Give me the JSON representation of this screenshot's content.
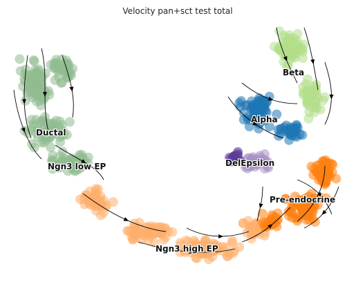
{
  "chart_data": {
    "type": "scatter",
    "title": "Velocity pan+sct test total",
    "xlabel": "",
    "ylabel": "",
    "axes_visible": false,
    "grid": false,
    "legend": "on-data",
    "overlay": "velocity streamlines (black arrows)",
    "clusters": [
      {
        "name": "Ductal",
        "color": "#8fbc8f"
      },
      {
        "name": "Ngn3 low EP",
        "color": "#8fbc8f"
      },
      {
        "name": "Ngn3 high EP",
        "color": "#fdae6b"
      },
      {
        "name": "Pre-endocrine",
        "color": "#ff7f0e"
      },
      {
        "name": "Alpha",
        "color": "#1f77b4"
      },
      {
        "name": "Beta",
        "color": "#b2df8a"
      },
      {
        "name": "Delta",
        "color": "#aa91c7"
      },
      {
        "name": "Epsilon",
        "color": "#5e3c99"
      }
    ]
  }
}
